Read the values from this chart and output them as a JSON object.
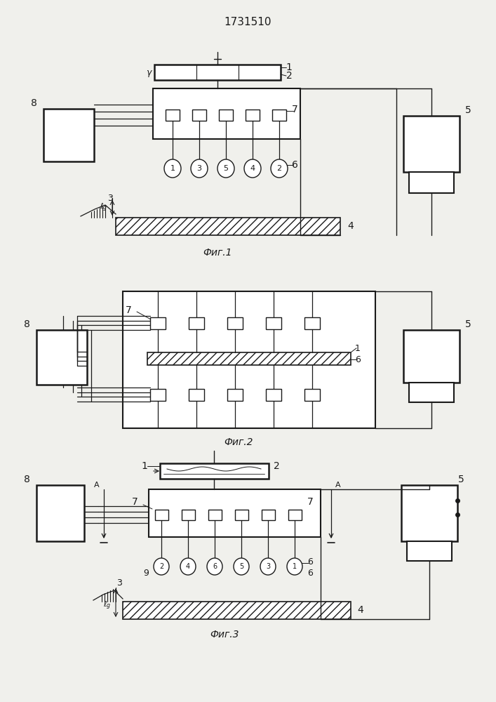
{
  "title": "1731510",
  "bg_color": "#f0f0ec",
  "line_color": "#1a1a1a",
  "fig1_caption": "Фиг.1",
  "fig2_caption": "Фиг.2",
  "fig3_caption": "Фиг.3"
}
